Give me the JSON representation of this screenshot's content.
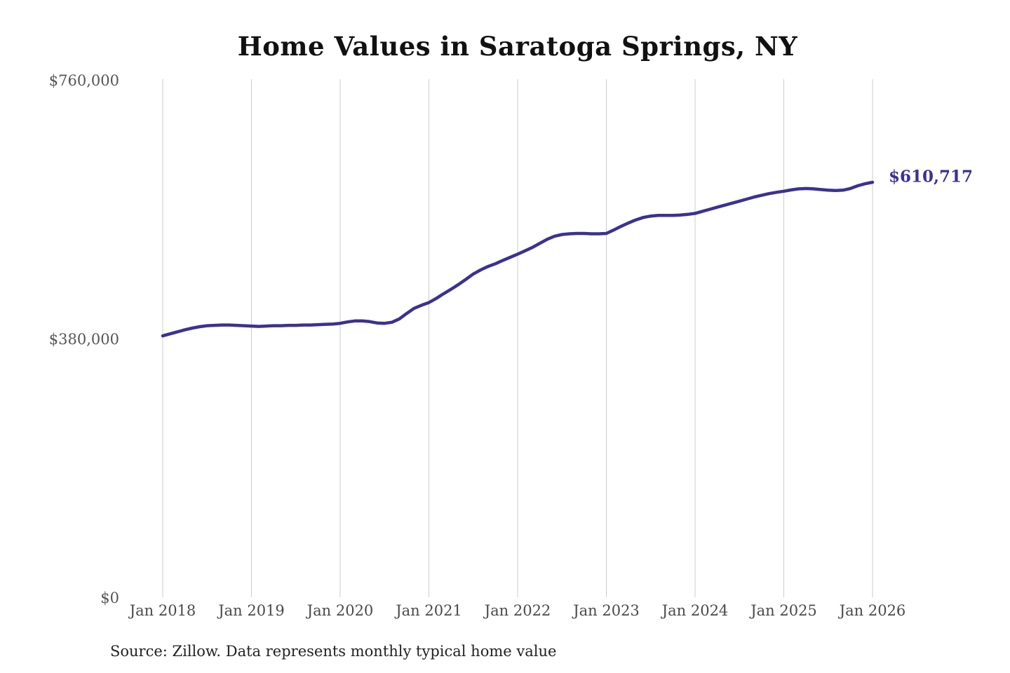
{
  "chart": {
    "title": "Home Values in Saratoga Springs, NY",
    "annotation": "$610,717",
    "source": "Source: Zillow. Data represents monthly typical home value"
  },
  "colors": {
    "line": "#3b3193",
    "annotation": "#3b3193",
    "gridline": "#cccccc",
    "title": "#111111",
    "y_tick_text": "#555555",
    "x_tick_text": "#4a4a4a",
    "source_text": "#222222",
    "background": "#ffffff"
  },
  "chart_data": {
    "type": "line",
    "title": "Home Values in Saratoga Springs, NY",
    "series_name": "Monthly typical home value (USD)",
    "unit": "USD",
    "frequency": "monthly",
    "start_month": "2018-01",
    "end_month": "2026-01",
    "x_tick_labels": [
      "Jan 2018",
      "Jan 2019",
      "Jan 2020",
      "Jan 2021",
      "Jan 2022",
      "Jan 2023",
      "Jan 2024",
      "Jan 2025",
      "Jan 2026"
    ],
    "months_per_x_tick": 12,
    "y_tick_labels": [
      "$0",
      "$380,000",
      "$760,000"
    ],
    "y_tick_values": [
      0,
      380000,
      760000
    ],
    "ylim": [
      0,
      760000
    ],
    "grid": "vertical-only",
    "end_value": 610717,
    "end_value_label": "$610,717",
    "values": [
      385000,
      388000,
      391000,
      394000,
      396500,
      398500,
      400000,
      400500,
      401000,
      401000,
      400500,
      400000,
      399500,
      399000,
      399500,
      400000,
      400000,
      400500,
      400500,
      401000,
      401000,
      401500,
      402000,
      402500,
      403500,
      405500,
      407000,
      407000,
      406000,
      404000,
      403500,
      405000,
      410000,
      418000,
      425500,
      430000,
      434000,
      440000,
      447000,
      453500,
      460500,
      468000,
      476000,
      482000,
      487000,
      491000,
      496000,
      500500,
      505000,
      510000,
      515000,
      521000,
      527000,
      531500,
      534000,
      535000,
      535500,
      535500,
      535000,
      535000,
      535500,
      540500,
      546000,
      551000,
      555500,
      559000,
      561000,
      562000,
      562000,
      562000,
      562500,
      563500,
      565000,
      568000,
      571000,
      574000,
      577000,
      580000,
      583000,
      586000,
      589000,
      591500,
      594000,
      596000,
      597500,
      599500,
      601000,
      601500,
      601000,
      600000,
      599000,
      598500,
      599000,
      601500,
      605500,
      608500,
      610717
    ]
  }
}
